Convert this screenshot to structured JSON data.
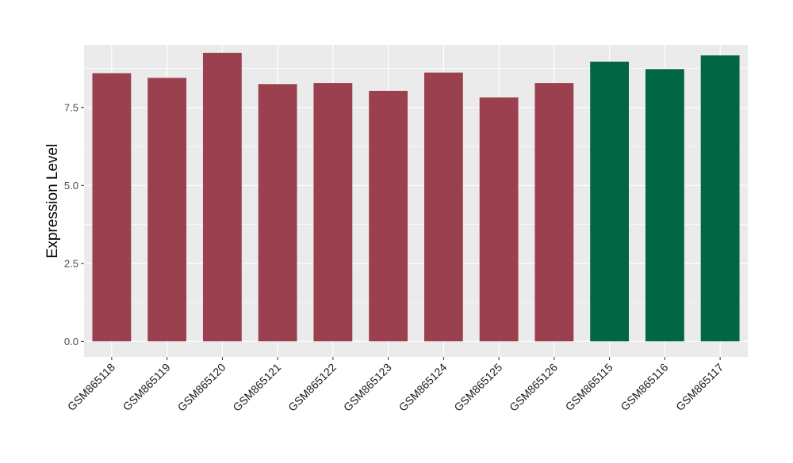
{
  "chart_data": {
    "type": "bar",
    "title": "",
    "xlabel": "",
    "ylabel": "Expression Level",
    "ylim": [
      -0.5,
      9.5
    ],
    "yticks": [
      0.0,
      2.5,
      5.0,
      7.5
    ],
    "ytick_labels": [
      "0.0",
      "2.5",
      "5.0",
      "7.5"
    ],
    "grid": true,
    "legend": "none",
    "categories": [
      "GSM865118",
      "GSM865119",
      "GSM865120",
      "GSM865121",
      "GSM865122",
      "GSM865123",
      "GSM865124",
      "GSM865125",
      "GSM865126",
      "GSM865115",
      "GSM865116",
      "GSM865117"
    ],
    "values": [
      8.6,
      8.45,
      9.25,
      8.25,
      8.28,
      8.03,
      8.62,
      7.82,
      8.28,
      8.97,
      8.73,
      9.17
    ],
    "bar_colors": [
      "#9B404F",
      "#9B404F",
      "#9B404F",
      "#9B404F",
      "#9B404F",
      "#9B404F",
      "#9B404F",
      "#9B404F",
      "#9B404F",
      "#006644",
      "#006644",
      "#006644"
    ],
    "panel_color": "#EBEBEB",
    "grid_color": "#FFFFFF"
  }
}
